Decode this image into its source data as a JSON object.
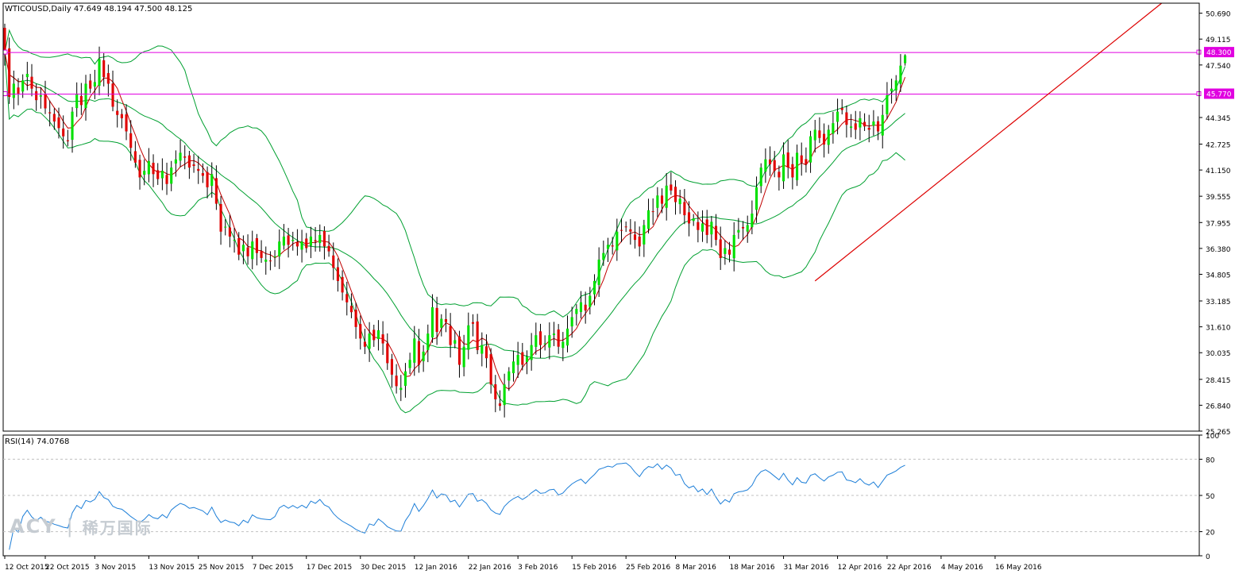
{
  "chart_data": {
    "type": "candlestick",
    "symbol": "WTICOUSD,Daily",
    "ohlc_text": "47.649 48.194 47.500 48.125",
    "colors": {
      "bull": "#00e000",
      "bear": "#e00000",
      "bands": "#00a030",
      "ma": "#c00000",
      "hline": "#e000e0",
      "trend": "#dd0000",
      "rsi": "#1e7fd8",
      "axis": "#000000",
      "price_tag_bg": "#e000e0",
      "level_dash": "#c0c0c0"
    },
    "price_axis": {
      "min": 25.265,
      "max": 51.3,
      "ticks": [
        "50.690",
        "49.115",
        "47.540",
        "44.345",
        "42.725",
        "41.150",
        "39.555",
        "37.955",
        "36.380",
        "34.805",
        "33.185",
        "31.610",
        "30.035",
        "28.415",
        "26.840",
        "25.265"
      ]
    },
    "hlines": [
      {
        "price": 48.3,
        "label": "48.300"
      },
      {
        "price": 45.77,
        "label": "45.770"
      }
    ],
    "trendline": {
      "from": {
        "x": 180,
        "price": 34.4
      },
      "to": {
        "x": 257,
        "price": 51.3
      }
    },
    "x_axis": {
      "start": 0,
      "end": 265,
      "labels": [
        {
          "x": 0,
          "text": "12 Oct 2015"
        },
        {
          "x": 9,
          "text": "22 Oct 2015"
        },
        {
          "x": 20,
          "text": "3 Nov 2015"
        },
        {
          "x": 32,
          "text": "13 Nov 2015"
        },
        {
          "x": 43,
          "text": "25 Nov 2015"
        },
        {
          "x": 55,
          "text": "7 Dec 2015"
        },
        {
          "x": 67,
          "text": "17 Dec 2015"
        },
        {
          "x": 79,
          "text": "30 Dec 2015"
        },
        {
          "x": 91,
          "text": "12 Jan 2016"
        },
        {
          "x": 103,
          "text": "22 Jan 2016"
        },
        {
          "x": 114,
          "text": "3 Feb 2016"
        },
        {
          "x": 126,
          "text": "15 Feb 2016"
        },
        {
          "x": 138,
          "text": "25 Feb 2016"
        },
        {
          "x": 149,
          "text": "8 Mar 2016"
        },
        {
          "x": 161,
          "text": "18 Mar 2016"
        },
        {
          "x": 173,
          "text": "31 Mar 2016"
        },
        {
          "x": 185,
          "text": "12 Apr 2016"
        },
        {
          "x": 196,
          "text": "22 Apr 2016"
        },
        {
          "x": 208,
          "text": "4 May 2016"
        },
        {
          "x": 220,
          "text": "16 May 2016"
        }
      ]
    },
    "closes": [
      48.3,
      45.6,
      46.4,
      45.8,
      46.6,
      47.0,
      46.1,
      45.4,
      45.7,
      44.9,
      44.6,
      44.1,
      43.7,
      43.2,
      42.9,
      44.7,
      45.8,
      45.1,
      46.4,
      46.1,
      46.5,
      47.9,
      46.8,
      46.4,
      45.0,
      44.5,
      44.3,
      43.5,
      42.5,
      41.6,
      40.7,
      41.1,
      41.7,
      40.9,
      40.6,
      41.1,
      40.3,
      41.3,
      41.8,
      42.2,
      41.9,
      41.3,
      41.4,
      41.1,
      40.8,
      40.1,
      40.9,
      39.1,
      37.4,
      37.7,
      37.1,
      36.9,
      36.0,
      36.6,
      35.9,
      36.8,
      36.1,
      35.8,
      35.7,
      35.6,
      35.9,
      36.8,
      37.1,
      36.6,
      36.9,
      36.5,
      36.8,
      36.4,
      37.1,
      36.8,
      37.2,
      36.5,
      36.2,
      35.2,
      34.4,
      33.7,
      33.1,
      32.5,
      31.6,
      30.9,
      30.4,
      31.2,
      30.8,
      31.4,
      30.6,
      29.4,
      28.7,
      28.0,
      27.9,
      28.9,
      29.6,
      30.9,
      29.3,
      30.1,
      31.2,
      32.8,
      31.3,
      32.1,
      31.9,
      30.5,
      30.8,
      29.3,
      30.4,
      31.7,
      31.8,
      30.2,
      30.5,
      29.7,
      28.1,
      27.2,
      26.8,
      28.1,
      28.9,
      29.5,
      29.9,
      29.3,
      29.8,
      30.5,
      31.1,
      30.5,
      30.6,
      31.1,
      31.2,
      30.4,
      30.7,
      31.5,
      32.2,
      32.7,
      33.1,
      32.6,
      33.5,
      34.4,
      35.7,
      36.1,
      36.6,
      36.5,
      37.4,
      37.5,
      37.7,
      37.4,
      36.9,
      36.5,
      37.8,
      38.7,
      38.6,
      39.6,
      39.1,
      40.2,
      39.9,
      39.2,
      39.4,
      38.4,
      37.9,
      38.2,
      37.5,
      37.9,
      37.2,
      38.0,
      36.9,
      35.8,
      36.4,
      36.0,
      37.2,
      37.5,
      37.6,
      37.8,
      38.5,
      40.1,
      41.3,
      41.8,
      41.5,
      41.1,
      40.7,
      42.1,
      41.3,
      40.7,
      42.2,
      41.6,
      41.5,
      43.2,
      43.6,
      43.1,
      42.7,
      43.6,
      44.0,
      44.7,
      44.8,
      43.9,
      43.8,
      43.6,
      44.3,
      43.8,
      43.6,
      44.1,
      43.5,
      44.5,
      45.7,
      46.1,
      46.6,
      47.5,
      48.1
    ]
  }
}
